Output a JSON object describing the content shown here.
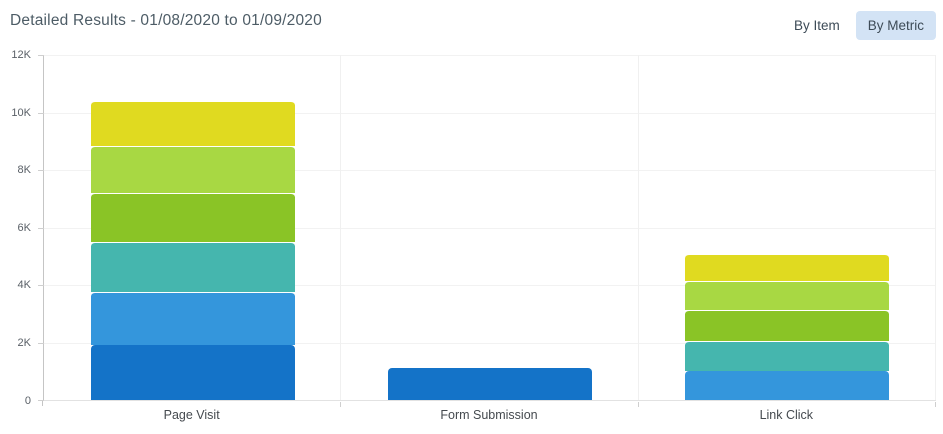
{
  "header": {
    "title": "Detailed Results - 01/08/2020 to 01/09/2020",
    "view_toggle": {
      "by_item_label": "By Item",
      "by_metric_label": "By Metric",
      "selected": "By Metric",
      "selected_bg": "#d3e3f5"
    }
  },
  "colors": {
    "title_text": "#4d5c66",
    "button_text": "#3d4b57",
    "selected_button_bg": "#d3e3f5",
    "gridline": "#f2f2f2",
    "axis_line": "#c5c5c5"
  },
  "chart_data": {
    "type": "bar",
    "stacked": true,
    "title": "Detailed Results - 01/08/2020 to 01/09/2020",
    "categories": [
      "Page Visit",
      "Form Submission",
      "Link Click"
    ],
    "series": [
      {
        "name": "dark-blue",
        "color": "#1473c8",
        "values": [
          1900,
          1120,
          0
        ]
      },
      {
        "name": "blue",
        "color": "#3496dc",
        "values": [
          1850,
          0,
          1000
        ]
      },
      {
        "name": "teal",
        "color": "#45b6ae",
        "values": [
          1750,
          0,
          1050
        ]
      },
      {
        "name": "green",
        "color": "#8ac426",
        "values": [
          1700,
          0,
          1090
        ]
      },
      {
        "name": "light-green",
        "color": "#a8d843",
        "values": [
          1650,
          0,
          1000
        ]
      },
      {
        "name": "yellow",
        "color": "#e0da20",
        "values": [
          1550,
          0,
          930
        ]
      }
    ],
    "category_totals": [
      10400,
      1120,
      5070
    ],
    "xlabel": "",
    "ylabel": "",
    "ylim": [
      0,
      12000
    ],
    "y_ticks": [
      "0",
      "2K",
      "4K",
      "6K",
      "8K",
      "10K",
      "12K"
    ],
    "grid": true,
    "legend_position": "none"
  }
}
